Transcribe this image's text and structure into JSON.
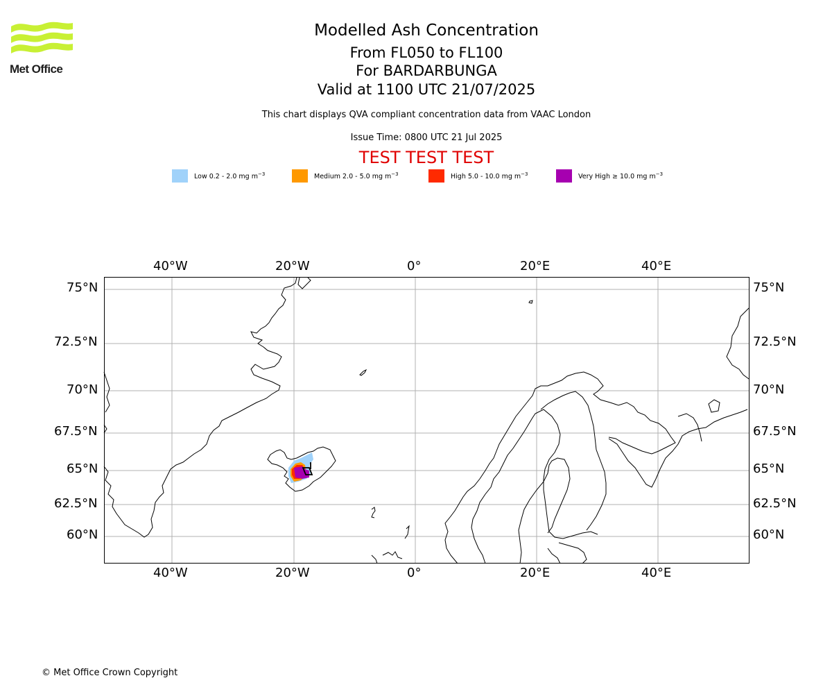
{
  "header": {
    "logo_text": "Met Office",
    "title": "Modelled Ash Concentration",
    "levels": "From FL050 to FL100",
    "volcano": "For BARDARBUNGA",
    "valid": "Valid at 1100 UTC 21/07/2025",
    "description": "This chart displays QVA compliant concentration data from VAAC London",
    "issue_time": "Issue Time: 0800 UTC 21 Jul 2025",
    "test_banner": "TEST TEST TEST"
  },
  "legend": [
    {
      "label": "Low 0.2 - 2.0 mg m",
      "sup": "−3",
      "color": "#a0d2fa"
    },
    {
      "label": "Medium 2.0 - 5.0 mg m",
      "sup": "−3",
      "color": "#ff9900"
    },
    {
      "label": "High 5.0 - 10.0 mg m",
      "sup": "−3",
      "color": "#ff2a00"
    },
    {
      "label": "Very High  ≥  10.0 mg m",
      "sup": "−3",
      "color": "#a600b0"
    }
  ],
  "map": {
    "lon_labels": [
      "40°W",
      "20°W",
      "0°",
      "20°E",
      "40°E"
    ],
    "lat_labels": [
      "75°N",
      "72.5°N",
      "70°N",
      "67.5°N",
      "65°N",
      "62.5°N",
      "60°N"
    ]
  },
  "footer": {
    "copyright": "© Met Office Crown Copyright"
  }
}
